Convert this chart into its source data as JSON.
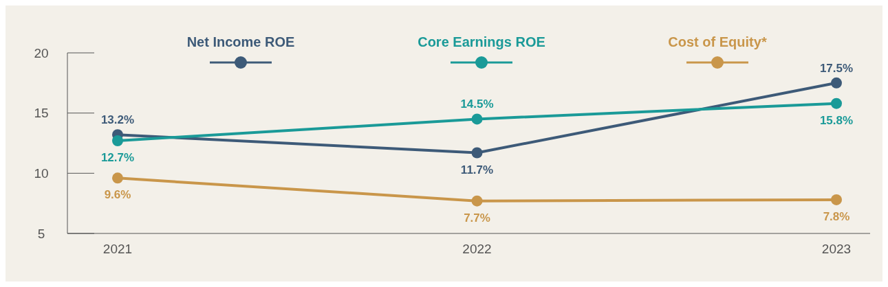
{
  "chart_data": {
    "type": "line",
    "categories": [
      "2021",
      "2022",
      "2023"
    ],
    "series": [
      {
        "name": "Net Income ROE",
        "color": "#3d5a78",
        "values": [
          13.2,
          11.7,
          17.5
        ],
        "value_labels": [
          "13.2%",
          "11.7%",
          "17.5%"
        ]
      },
      {
        "name": "Core Earnings ROE",
        "color": "#1a9a98",
        "values": [
          12.7,
          14.5,
          15.8
        ],
        "value_labels": [
          "12.7%",
          "14.5%",
          "15.8%"
        ]
      },
      {
        "name": "Cost of Equity*",
        "color": "#c9964a",
        "values": [
          9.6,
          7.7,
          7.8
        ],
        "value_labels": [
          "9.6%",
          "7.7%",
          "7.8%"
        ]
      }
    ],
    "ylim": [
      5,
      20
    ],
    "yticks": [
      5,
      10,
      15,
      20
    ],
    "grid": false,
    "legend": "top",
    "marker": "circle",
    "line_style": "solid"
  }
}
